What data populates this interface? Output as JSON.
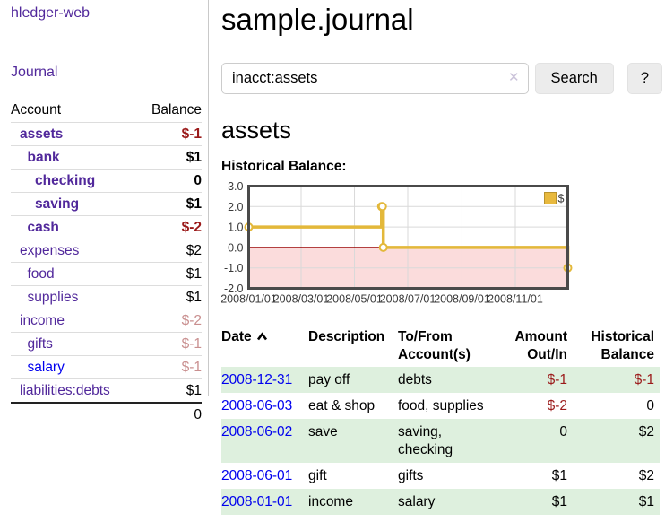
{
  "app": {
    "title": "hledger-web"
  },
  "sidebar": {
    "journal_link": "Journal",
    "table": {
      "headers": [
        "Account",
        "Balance"
      ],
      "accounts": [
        {
          "name": "assets",
          "depth": 1,
          "bold": true,
          "balance": "$-1",
          "balance_color": "#9b1a1a"
        },
        {
          "name": "bank",
          "depth": 2,
          "bold": true,
          "balance": "$1",
          "balance_color": "#000000"
        },
        {
          "name": "checking",
          "depth": 3,
          "bold": true,
          "balance": "0",
          "balance_color": "#000000"
        },
        {
          "name": "saving",
          "depth": 3,
          "bold": true,
          "balance": "$1",
          "balance_color": "#000000"
        },
        {
          "name": "cash",
          "depth": 2,
          "bold": true,
          "balance": "$-2",
          "balance_color": "#9b1a1a"
        },
        {
          "name": "expenses",
          "depth": 1,
          "bold": false,
          "balance": "$2",
          "balance_color": "#000000"
        },
        {
          "name": "food",
          "depth": 2,
          "bold": false,
          "balance": "$1",
          "balance_color": "#000000"
        },
        {
          "name": "supplies",
          "depth": 2,
          "bold": false,
          "balance": "$1",
          "balance_color": "#000000"
        },
        {
          "name": "income",
          "depth": 1,
          "bold": false,
          "balance": "$-2",
          "balance_color": "#c98f8f"
        },
        {
          "name": "gifts",
          "depth": 2,
          "bold": false,
          "balance": "$-1",
          "balance_color": "#c98f8f"
        },
        {
          "name": "salary",
          "depth": 2,
          "bold": false,
          "balance": "$-1",
          "balance_color": "#c98f8f",
          "link_color": "#0000ee"
        },
        {
          "name": "liabilities:debts",
          "depth": 1,
          "bold": false,
          "balance": "$1",
          "balance_color": "#000000"
        }
      ],
      "total": "0"
    }
  },
  "header": {
    "title": "sample.journal"
  },
  "search": {
    "query": "inacct:assets",
    "clear_icon": "✕",
    "button_label": "Search",
    "help_label": "?"
  },
  "account_page": {
    "heading": "assets",
    "chart_label": "Historical Balance:"
  },
  "chart_data": {
    "type": "line",
    "title": "Historical Balance",
    "step": true,
    "legend": [
      {
        "label": "$",
        "color": "#e8b93e"
      }
    ],
    "legend_position": "top-right",
    "grid": true,
    "ylim": [
      -2,
      3
    ],
    "y_ticks": [
      3.0,
      2.0,
      1.0,
      0.0,
      -1.0,
      -2.0
    ],
    "x_range_days": [
      0,
      365
    ],
    "x_tick_days": [
      0,
      60,
      121,
      182,
      244,
      305
    ],
    "x_tick_labels": [
      "2008/01/01",
      "2008/03/01",
      "2008/05/01",
      "2008/07/01",
      "2008/09/01",
      "2008/11/01"
    ],
    "series": [
      {
        "name": "$",
        "points": [
          {
            "date": "2008-01-01",
            "day": 0,
            "value": 1
          },
          {
            "date": "2008-06-01",
            "day": 152,
            "value": 2
          },
          {
            "date": "2008-06-02",
            "day": 153,
            "value": 2
          },
          {
            "date": "2008-06-03",
            "day": 154,
            "value": 0
          },
          {
            "date": "2008-12-31",
            "day": 365,
            "value": -1
          }
        ]
      }
    ],
    "line_color": "#e3b83a",
    "marker_fill": "#ffffff",
    "negative_region_color": "#fbdcdc",
    "zero_line_color": "#9a0000",
    "gridline_color": "#d9d9d9",
    "border_color": "#4a4a4a"
  },
  "register": {
    "headers": [
      {
        "label": "Date",
        "align": "left",
        "sortable": true,
        "sort": "ascending"
      },
      {
        "label": "Description",
        "align": "left"
      },
      {
        "label": "To/From Account(s)",
        "align": "left"
      },
      {
        "label": "Amount Out/In",
        "align": "right"
      },
      {
        "label": "Historical Balance",
        "align": "right"
      }
    ],
    "rows": [
      {
        "date": "2008-12-31",
        "description": "pay off",
        "accounts": "debts",
        "amount": "$-1",
        "amount_neg": true,
        "balance": "$-1",
        "balance_neg": true
      },
      {
        "date": "2008-06-03",
        "description": "eat & shop",
        "accounts": "food, supplies",
        "amount": "$-2",
        "amount_neg": true,
        "balance": "0",
        "balance_neg": false
      },
      {
        "date": "2008-06-02",
        "description": "save",
        "accounts": "saving, checking",
        "amount": "0",
        "amount_neg": false,
        "balance": "$2",
        "balance_neg": false
      },
      {
        "date": "2008-06-01",
        "description": "gift",
        "accounts": "gifts",
        "amount": "$1",
        "amount_neg": false,
        "balance": "$2",
        "balance_neg": false
      },
      {
        "date": "2008-01-01",
        "description": "income",
        "accounts": "salary",
        "amount": "$1",
        "amount_neg": false,
        "balance": "$1",
        "balance_neg": false
      }
    ]
  },
  "colors": {
    "link_purple": "#51289b",
    "link_blue": "#0000ee",
    "negative_strong": "#9b1a1a",
    "negative_muted": "#c98f8f",
    "row_green": "#def0de",
    "button_gray": "#ececec",
    "chart_gold": "#e3b83a",
    "chart_pink": "#fbdcdc"
  }
}
